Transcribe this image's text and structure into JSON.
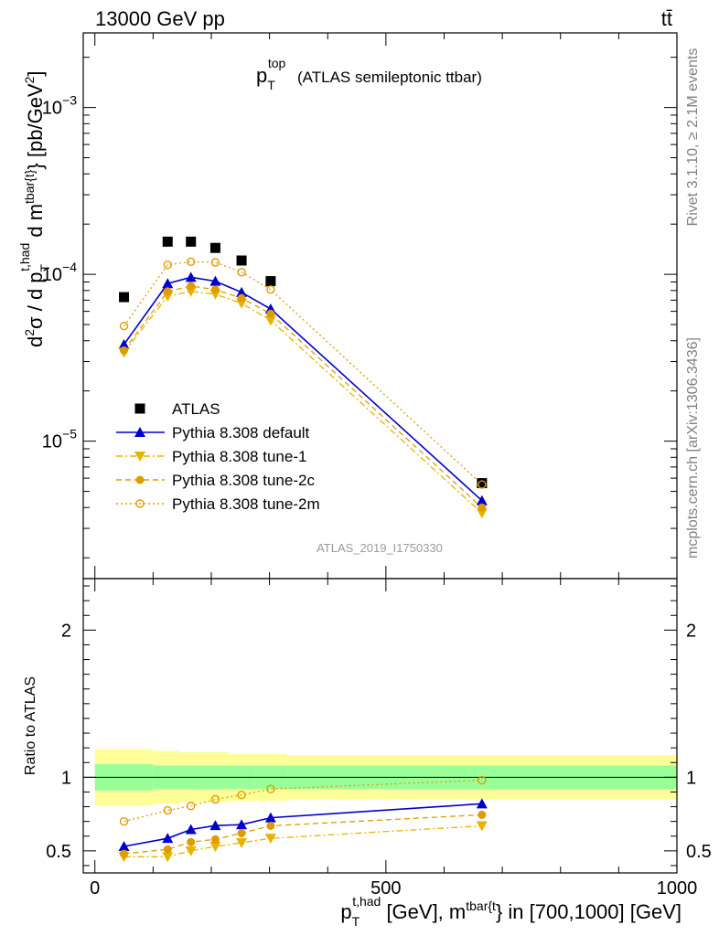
{
  "header": {
    "left": "13000 GeV pp",
    "right": "tt̄"
  },
  "side_labels": {
    "top": "Rivet 3.1.10, ≥ 2.1M events",
    "bottom": "mcplots.cern.ch [arXiv:1306.3436]"
  },
  "watermark": "ATLAS_2019_I1750330",
  "chart_data": [
    {
      "type": "line",
      "panel": "main",
      "title": "p_T^top (ATLAS semileptonic ttbar)",
      "ylabel": "d²σ / d p_T^{t,had} d m^{tbar{t}} [pb/GeV²]",
      "yscale": "log",
      "ylim": [
        1.5e-06,
        0.0028
      ],
      "xlim": [
        -20,
        1000
      ],
      "yticks": [
        {
          "label": "10⁻³",
          "base": "10",
          "exp": "−3",
          "value": 0.001
        },
        {
          "label": "10⁻⁴",
          "base": "10",
          "exp": "−4",
          "value": 0.0001
        },
        {
          "label": "10⁻⁵",
          "base": "10",
          "exp": "−5",
          "value": 1e-05
        }
      ],
      "legend_position": "bottom-left",
      "series": [
        {
          "name": "ATLAS",
          "color": "#000000",
          "marker": "square",
          "line": "none",
          "x": [
            50,
            125,
            165,
            207,
            252,
            302,
            665
          ],
          "y": [
            7.3e-05,
            0.000157,
            0.000157,
            0.000144,
            0.000121,
            9.1e-05,
            5.6e-06
          ]
        },
        {
          "name": "Pythia 8.308 default",
          "color": "#0000cc",
          "marker": "triangle-up",
          "line": "solid",
          "x": [
            50,
            125,
            165,
            207,
            252,
            302,
            665
          ],
          "y": [
            3.8e-05,
            8.8e-05,
            9.6e-05,
            9.1e-05,
            7.8e-05,
            6.2e-05,
            4.4e-06
          ]
        },
        {
          "name": "Pythia 8.308 tune-1",
          "color": "#e6b400",
          "marker": "triangle-down",
          "line": "dashdot",
          "x": [
            50,
            125,
            165,
            207,
            252,
            302,
            665
          ],
          "y": [
            3.4e-05,
            7.4e-05,
            7.9e-05,
            7.6e-05,
            6.7e-05,
            5.3e-05,
            3.7e-06
          ]
        },
        {
          "name": "Pythia 8.308 tune-2c",
          "color": "#e09b00",
          "marker": "circle",
          "line": "dashed",
          "x": [
            50,
            125,
            165,
            207,
            252,
            302,
            665
          ],
          "y": [
            3.5e-05,
            7.9e-05,
            8.5e-05,
            8.1e-05,
            7.2e-05,
            5.8e-05,
            4e-06
          ]
        },
        {
          "name": "Pythia 8.308 tune-2m",
          "color": "#e09b00",
          "marker": "open-circle",
          "line": "dotted",
          "x": [
            50,
            125,
            165,
            207,
            252,
            302,
            665
          ],
          "y": [
            4.9e-05,
            0.000114,
            0.000119,
            0.000118,
            0.000103,
            8.1e-05,
            5.5e-06
          ]
        }
      ]
    },
    {
      "type": "line",
      "panel": "ratio",
      "ylabel": "Ratio to ATLAS",
      "xlabel": "p_T^{t,had} [GeV], m^{tbar{t}} in [700,1000] [GeV]",
      "ylim": [
        0.35,
        2.35
      ],
      "xlim": [
        -20,
        1000
      ],
      "xticks": [
        {
          "label": "0",
          "value": 0
        },
        {
          "label": "500",
          "value": 500
        },
        {
          "label": "1000",
          "value": 1000
        }
      ],
      "yticks": [
        {
          "label": "0.5",
          "value": 0.5
        },
        {
          "label": "1",
          "value": 1
        },
        {
          "label": "2",
          "value": 2
        }
      ],
      "bands": {
        "x_edges": [
          0,
          100,
          145,
          185,
          230,
          275,
          330,
          1000
        ],
        "yellow_lo": [
          0.81,
          0.82,
          0.83,
          0.83,
          0.84,
          0.84,
          0.85
        ],
        "yellow_hi": [
          1.19,
          1.18,
          1.17,
          1.17,
          1.16,
          1.16,
          1.15
        ],
        "green_lo": [
          0.91,
          0.92,
          0.92,
          0.92,
          0.92,
          0.92,
          0.92
        ],
        "green_hi": [
          1.09,
          1.08,
          1.08,
          1.08,
          1.08,
          1.08,
          1.08
        ],
        "yellow_color": "#ffff99",
        "green_color": "#99ff99"
      },
      "series": [
        {
          "name": "Pythia 8.308 default",
          "color": "#0000cc",
          "marker": "triangle-up",
          "line": "solid",
          "x": [
            50,
            125,
            165,
            207,
            252,
            302,
            665
          ],
          "y": [
            0.53,
            0.585,
            0.645,
            0.672,
            0.678,
            0.725,
            0.82
          ]
        },
        {
          "name": "Pythia 8.308 tune-1",
          "color": "#e6b400",
          "marker": "triangle-down",
          "line": "dashdot",
          "x": [
            50,
            125,
            165,
            207,
            252,
            302,
            665
          ],
          "y": [
            0.46,
            0.46,
            0.5,
            0.53,
            0.555,
            0.585,
            0.67
          ]
        },
        {
          "name": "Pythia 8.308 tune-2c",
          "color": "#e09b00",
          "marker": "circle",
          "line": "dashed",
          "x": [
            50,
            125,
            165,
            207,
            252,
            302,
            665
          ],
          "y": [
            0.48,
            0.51,
            0.56,
            0.578,
            0.62,
            0.67,
            0.745
          ]
        },
        {
          "name": "Pythia 8.308 tune-2m",
          "color": "#e09b00",
          "marker": "open-circle",
          "line": "dotted",
          "x": [
            50,
            125,
            165,
            207,
            252,
            302,
            665
          ],
          "y": [
            0.7,
            0.775,
            0.805,
            0.85,
            0.88,
            0.92,
            0.98
          ]
        }
      ]
    }
  ]
}
